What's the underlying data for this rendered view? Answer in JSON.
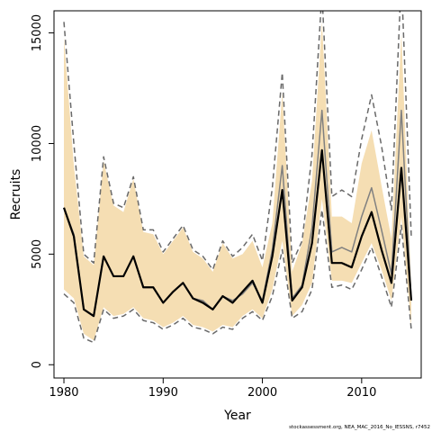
{
  "chart_data": {
    "type": "line",
    "title": "",
    "xlabel": "Year",
    "ylabel": "Recruits",
    "xlim": [
      1979,
      2016
    ],
    "ylim": [
      -600,
      16000
    ],
    "xticks": [
      1980,
      1990,
      2000,
      2010
    ],
    "yticks": [
      0,
      5000,
      10000,
      15000
    ],
    "x": [
      1980,
      1981,
      1982,
      1983,
      1984,
      1985,
      1986,
      1987,
      1988,
      1989,
      1990,
      1991,
      1992,
      1993,
      1994,
      1995,
      1996,
      1997,
      1998,
      1999,
      2000,
      2001,
      2002,
      2003,
      2004,
      2005,
      2006,
      2007,
      2008,
      2009,
      2010,
      2011,
      2012,
      2013,
      2014,
      2015
    ],
    "series": [
      {
        "name": "band_upper",
        "style": "band",
        "values": [
          14800,
          9000,
          4900,
          4500,
          9200,
          7200,
          6900,
          8400,
          6000,
          5900,
          5000,
          5600,
          6200,
          5100,
          4800,
          4200,
          5500,
          4800,
          5000,
          5600,
          4400,
          6400,
          12300,
          4200,
          5500,
          8300,
          15500,
          6700,
          6700,
          6400,
          9100,
          10600,
          8100,
          5700,
          15000,
          3500
        ]
      },
      {
        "name": "band_lower",
        "style": "band",
        "values": [
          3400,
          3000,
          1400,
          1100,
          2600,
          2200,
          2300,
          2600,
          2100,
          2000,
          1700,
          1900,
          2200,
          1800,
          1700,
          1500,
          1800,
          1700,
          2200,
          2500,
          2100,
          3400,
          5600,
          2200,
          2700,
          3700,
          7500,
          3800,
          3800,
          3700,
          4600,
          5500,
          4300,
          2900,
          6700,
          1700
        ]
      },
      {
        "name": "dashed_upper",
        "style": "dashed",
        "values": [
          15500,
          10000,
          5000,
          4600,
          9400,
          7300,
          7100,
          8500,
          6100,
          6100,
          5100,
          5700,
          6300,
          5200,
          4900,
          4300,
          5600,
          4900,
          5300,
          5900,
          4700,
          8000,
          13200,
          4600,
          5600,
          9500,
          16800,
          7600,
          7900,
          7600,
          10200,
          12200,
          9900,
          7000,
          17500,
          5800
        ]
      },
      {
        "name": "dashed_lower",
        "style": "dashed",
        "values": [
          3200,
          2800,
          1200,
          1000,
          2500,
          2100,
          2200,
          2500,
          2000,
          1900,
          1600,
          1800,
          2100,
          1700,
          1600,
          1400,
          1700,
          1600,
          2100,
          2400,
          2000,
          3100,
          5200,
          2100,
          2400,
          3400,
          7000,
          3500,
          3600,
          3400,
          4300,
          5300,
          4000,
          2600,
          6300,
          1600
        ]
      },
      {
        "name": "grey_line",
        "style": "grey",
        "values": [
          7100,
          5900,
          2500,
          2200,
          4900,
          4000,
          4000,
          4900,
          3500,
          3500,
          2800,
          3300,
          3700,
          3000,
          2900,
          2500,
          3100,
          2900,
          3200,
          3700,
          2900,
          5200,
          9000,
          3000,
          3600,
          6200,
          11500,
          5100,
          5300,
          5100,
          6700,
          8000,
          6100,
          4100,
          11500,
          2900
        ]
      },
      {
        "name": "black_line",
        "style": "black",
        "values": [
          7100,
          5800,
          2500,
          2200,
          4900,
          4000,
          4000,
          4900,
          3500,
          3500,
          2800,
          3300,
          3700,
          3000,
          2800,
          2500,
          3100,
          2800,
          3300,
          3800,
          2800,
          4900,
          7900,
          2900,
          3500,
          5500,
          9700,
          4600,
          4600,
          4400,
          5800,
          6900,
          5200,
          3700,
          8900,
          2900
        ]
      }
    ],
    "colors": {
      "band": "#F5DEB3",
      "dashed": "#696969",
      "grey": "#808080",
      "black": "#000000"
    }
  },
  "footer_note": "stockassessment.org, NEA_MAC_2016_No_IESSNS, r7452"
}
